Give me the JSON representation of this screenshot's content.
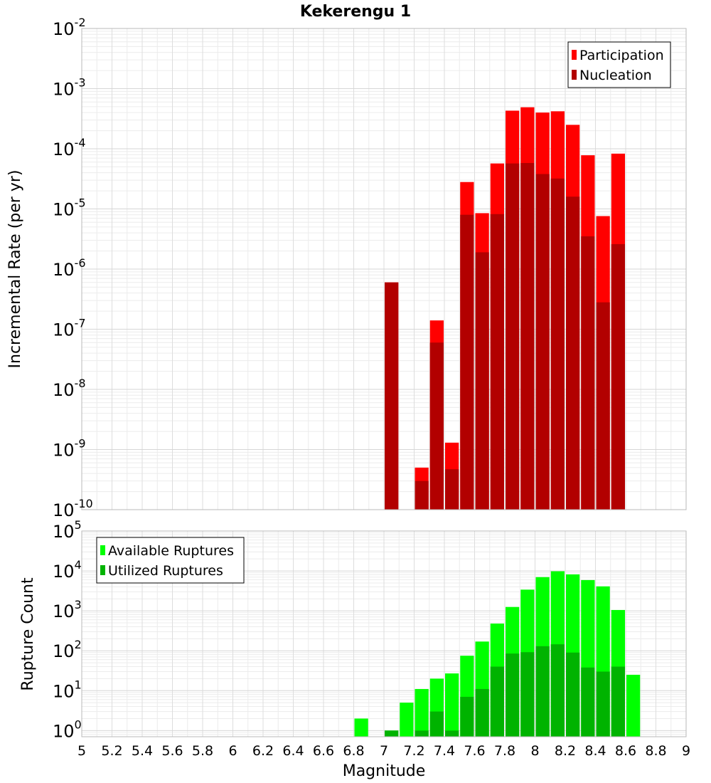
{
  "chart_data": [
    {
      "type": "bar",
      "title": "Kekerengu 1",
      "xlabel": "",
      "ylabel": "Incremental Rate (per yr)",
      "y_scale": "log",
      "xlim": [
        5,
        9
      ],
      "ylim": [
        1e-10,
        0.01
      ],
      "y_tick_labels": [
        "10^-10",
        "10^-9",
        "10^-8",
        "10^-7",
        "10^-6",
        "10^-5",
        "10^-4",
        "10^-3",
        "10^-2"
      ],
      "grid": true,
      "legend_position": "top-right",
      "x": [
        7.05,
        7.15,
        7.25,
        7.35,
        7.45,
        7.55,
        7.65,
        7.75,
        7.85,
        7.95,
        8.05,
        8.15,
        8.25,
        8.35,
        8.45,
        8.55
      ],
      "series": [
        {
          "name": "Participation",
          "color": "#ff0000",
          "values": [
            6e-07,
            0,
            5e-10,
            1.4e-07,
            1.3e-09,
            2.8e-05,
            8.5e-06,
            5.7e-05,
            0.00043,
            0.00049,
            0.0004,
            0.00042,
            0.00025,
            7.8e-05,
            7.6e-06,
            8.3e-05
          ]
        },
        {
          "name": "Nucleation",
          "color": "#b20000",
          "values": [
            6e-07,
            0,
            3e-10,
            6e-08,
            4.7e-10,
            8e-06,
            1.9e-06,
            8.2e-06,
            5.7e-05,
            5.8e-05,
            3.8e-05,
            3.2e-05,
            1.6e-05,
            3.5e-06,
            2.8e-07,
            2.6e-06
          ]
        }
      ]
    },
    {
      "type": "bar",
      "title": "",
      "xlabel": "Magnitude",
      "ylabel": "Rupture Count",
      "y_scale": "log",
      "xlim": [
        5,
        9
      ],
      "ylim": [
        0.7,
        100000.0
      ],
      "y_tick_labels": [
        "10^0",
        "10^1",
        "10^2",
        "10^3",
        "10^4",
        "10^5"
      ],
      "x_tick_labels": [
        "5",
        "5.2",
        "5.4",
        "5.6",
        "5.8",
        "6",
        "6.2",
        "6.4",
        "6.6",
        "6.8",
        "7",
        "7.2",
        "7.4",
        "7.6",
        "7.8",
        "8",
        "8.2",
        "8.4",
        "8.6",
        "8.8",
        "9"
      ],
      "grid": true,
      "legend_position": "top-left",
      "x": [
        6.85,
        7.05,
        7.15,
        7.25,
        7.35,
        7.45,
        7.55,
        7.65,
        7.75,
        7.85,
        7.95,
        8.05,
        8.15,
        8.25,
        8.35,
        8.45,
        8.55,
        8.65
      ],
      "series": [
        {
          "name": "Available Ruptures",
          "color": "#00ff00",
          "values": [
            2,
            1,
            5,
            11,
            20,
            27,
            75,
            170,
            480,
            1250,
            3400,
            7000,
            9800,
            8200,
            5900,
            4100,
            1050,
            25
          ]
        },
        {
          "name": "Utilized Ruptures",
          "color": "#00b300",
          "values": [
            0,
            1,
            0,
            1,
            3,
            1,
            7,
            11,
            40,
            85,
            92,
            130,
            145,
            90,
            38,
            30,
            40,
            0
          ]
        }
      ]
    }
  ]
}
